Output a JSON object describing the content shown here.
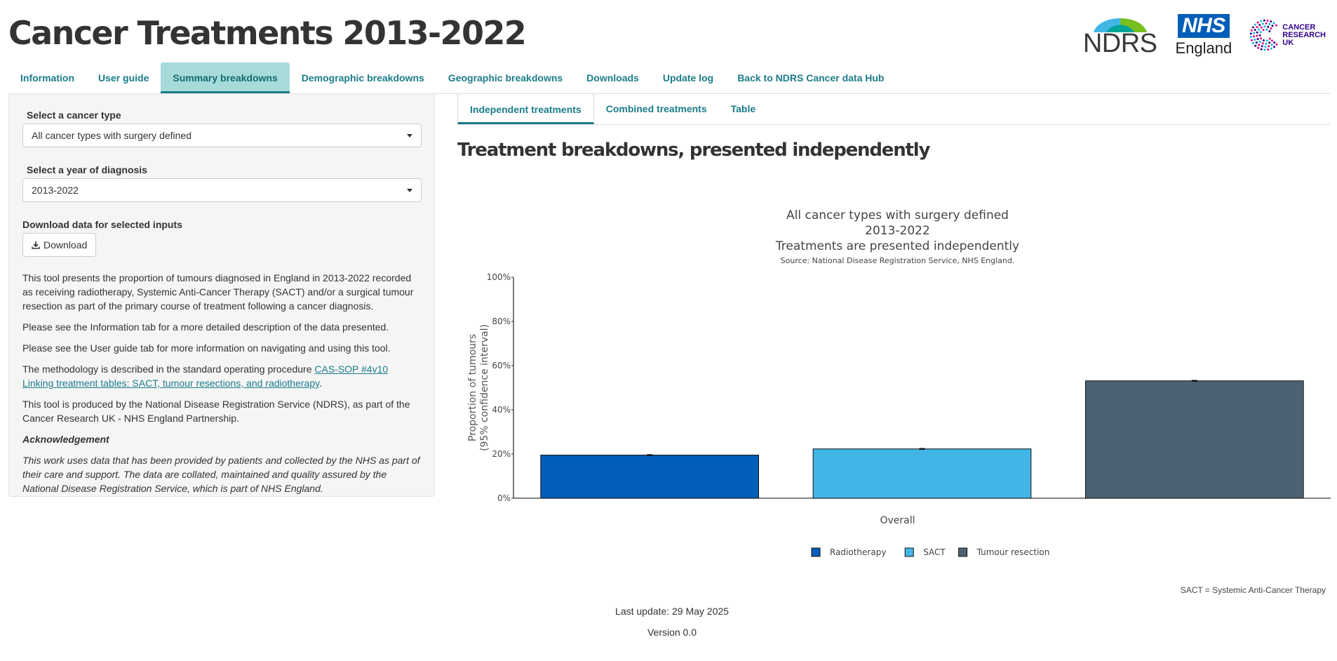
{
  "header": {
    "title": "Cancer Treatments 2013-2022"
  },
  "logos": {
    "ndrs": "NDRS",
    "nhs": "NHS",
    "nhs_sub": "England",
    "cruk_lines": [
      "CANCER",
      "RESEARCH",
      "UK"
    ]
  },
  "nav": {
    "items": [
      "Information",
      "User guide",
      "Summary breakdowns",
      "Demographic breakdowns",
      "Geographic breakdowns",
      "Downloads",
      "Update log",
      "Back to NDRS Cancer data Hub"
    ],
    "active": "Summary breakdowns"
  },
  "sidebar": {
    "cancer_type_label": "Select a cancer type",
    "cancer_type_value": "All cancer types with surgery defined",
    "year_label": "Select a year of diagnosis",
    "year_value": "2013-2022",
    "download_label": "Download data for selected inputs",
    "download_button": "Download",
    "para1": "This tool presents the proportion of tumours diagnosed in England in 2013-2022 recorded as receiving radiotherapy, Systemic Anti-Cancer Therapy (SACT) and/or a surgical tumour resection as part of the primary course of treatment following a cancer diagnosis.",
    "para2": "Please see the Information tab for a more detailed description of the data presented.",
    "para3": "Please see the User guide tab for more information on navigating and using this tool.",
    "para4_prefix": "The methodology is described in the standard operating procedure ",
    "para4_link": "CAS-SOP #4v10 Linking treatment tables: SACT, tumour resections, and radiotherapy",
    "para4_suffix": ".",
    "para5": "This tool is produced by the National Disease Registration Service (NDRS), as part of the Cancer Research UK - NHS England Partnership.",
    "ack_heading": "Acknowledgement",
    "ack_body": "This work uses data that has been provided by patients and collected by the NHS as part of their care and support. The data are collated, maintained and quality assured by the National Disease Registration Service, which is part of NHS England."
  },
  "subtabs": {
    "items": [
      "Independent treatments",
      "Combined treatments",
      "Table"
    ],
    "active": "Independent treatments"
  },
  "main": {
    "section_title": "Treatment breakdowns, presented independently",
    "footnote": "SACT = Systemic Anti-Cancer Therapy"
  },
  "footer": {
    "last_update": "Last update: 29 May 2025",
    "version": "Version 0.0"
  },
  "colors": {
    "accent": "#1b7c8a",
    "tab_active_bg": "#a6dbda",
    "radiotherapy": "#005eb8",
    "sact": "#41b6e6",
    "tumour_resection": "#4c6272"
  },
  "chart_data": {
    "type": "bar",
    "title_lines": [
      "All cancer types with surgery defined",
      "2013-2022",
      "Treatments are presented independently"
    ],
    "source": "Source: National Disease Registration Service, NHS England.",
    "categories": [
      "Overall"
    ],
    "xlabel": "Overall",
    "ylabel_lines": [
      "Proportion of tumours",
      "(95% confidence interval)"
    ],
    "ylim": [
      0,
      100
    ],
    "yticks": [
      "0%",
      "20%",
      "40%",
      "60%",
      "80%",
      "100%"
    ],
    "series": [
      {
        "name": "Radiotherapy",
        "values": [
          19.5
        ],
        "ci": [
          19.3,
          19.7
        ],
        "color": "#005eb8"
      },
      {
        "name": "SACT",
        "values": [
          22.3
        ],
        "ci": [
          22.1,
          22.5
        ],
        "color": "#41b6e6"
      },
      {
        "name": "Tumour resection",
        "values": [
          53.1
        ],
        "ci": [
          52.9,
          53.3
        ],
        "color": "#4c6272"
      }
    ],
    "legend_position": "bottom",
    "grid": false
  }
}
